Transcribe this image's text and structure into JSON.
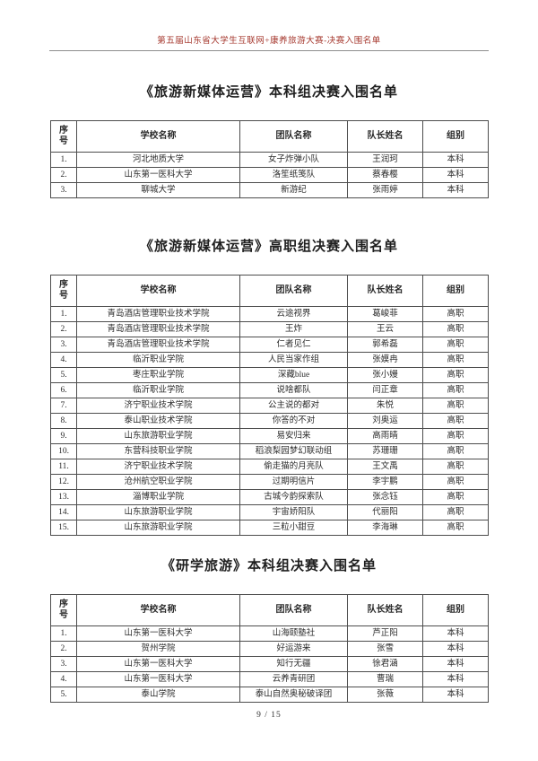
{
  "page": {
    "header": "第五届山东省大学生互联网+康养旅游大赛-决赛入围名单",
    "footer": "9 / 15",
    "accent_color": "#a6392f",
    "table_border_color": "#4d4d4d"
  },
  "columns": [
    "序号",
    "学校名称",
    "团队名称",
    "队长姓名",
    "组别"
  ],
  "sections": [
    {
      "title": "《旅游新媒体运营》本科组决赛入围名单",
      "rows": [
        [
          "1.",
          "河北地质大学",
          "女子炸弹小队",
          "王润珂",
          "本科"
        ],
        [
          "2.",
          "山东第一医科大学",
          "洛笙纸笺队",
          "蔡春樱",
          "本科"
        ],
        [
          "3.",
          "聊城大学",
          "新游纪",
          "张雨婷",
          "本科"
        ]
      ]
    },
    {
      "title": "《旅游新媒体运营》高职组决赛入围名单",
      "rows": [
        [
          "1.",
          "青岛酒店管理职业技术学院",
          "云途视界",
          "葛峻菲",
          "高职"
        ],
        [
          "2.",
          "青岛酒店管理职业技术学院",
          "王炸",
          "王云",
          "高职"
        ],
        [
          "3.",
          "青岛酒店管理职业技术学院",
          "仁者见仁",
          "郭希磊",
          "高职"
        ],
        [
          "4.",
          "临沂职业学院",
          "人民当家作组",
          "张嫫冉",
          "高职"
        ],
        [
          "5.",
          "枣庄职业学院",
          "深藏blue",
          "张小嫚",
          "高职"
        ],
        [
          "6.",
          "临沂职业学院",
          "说啥都队",
          "闫正章",
          "高职"
        ],
        [
          "7.",
          "济宁职业技术学院",
          "公主说的都对",
          "朱悦",
          "高职"
        ],
        [
          "8.",
          "泰山职业技术学院",
          "你答的不对",
          "刘奥运",
          "高职"
        ],
        [
          "9.",
          "山东旅游职业学院",
          "易安归来",
          "高雨晴",
          "高职"
        ],
        [
          "10.",
          "东营科技职业学院",
          "稻浪梨园梦幻联动组",
          "苏珊珊",
          "高职"
        ],
        [
          "11.",
          "济宁职业技术学院",
          "偷走猫的月亮队",
          "王文禹",
          "高职"
        ],
        [
          "12.",
          "沧州航空职业学院",
          "过期明信片",
          "李宇鹏",
          "高职"
        ],
        [
          "13.",
          "淄博职业学院",
          "古城今韵探索队",
          "张念钰",
          "高职"
        ],
        [
          "14.",
          "山东旅游职业学院",
          "宇宙娇阳队",
          "代丽阳",
          "高职"
        ],
        [
          "15.",
          "山东旅游职业学院",
          "三粒小甜豆",
          "李海琳",
          "高职"
        ]
      ]
    },
    {
      "title": "《研学旅游》本科组决赛入围名单",
      "rows": [
        [
          "1.",
          "山东第一医科大学",
          "山海颐塾社",
          "芦正阳",
          "本科"
        ],
        [
          "2.",
          "贺州学院",
          "好运游来",
          "张雪",
          "本科"
        ],
        [
          "3.",
          "山东第一医科大学",
          "知行无疆",
          "徐君涵",
          "本科"
        ],
        [
          "4.",
          "山东第一医科大学",
          "云养青研团",
          "曹瑞",
          "本科"
        ],
        [
          "5.",
          "泰山学院",
          "泰山自然奥秘破译团",
          "张薇",
          "本科"
        ]
      ]
    }
  ]
}
